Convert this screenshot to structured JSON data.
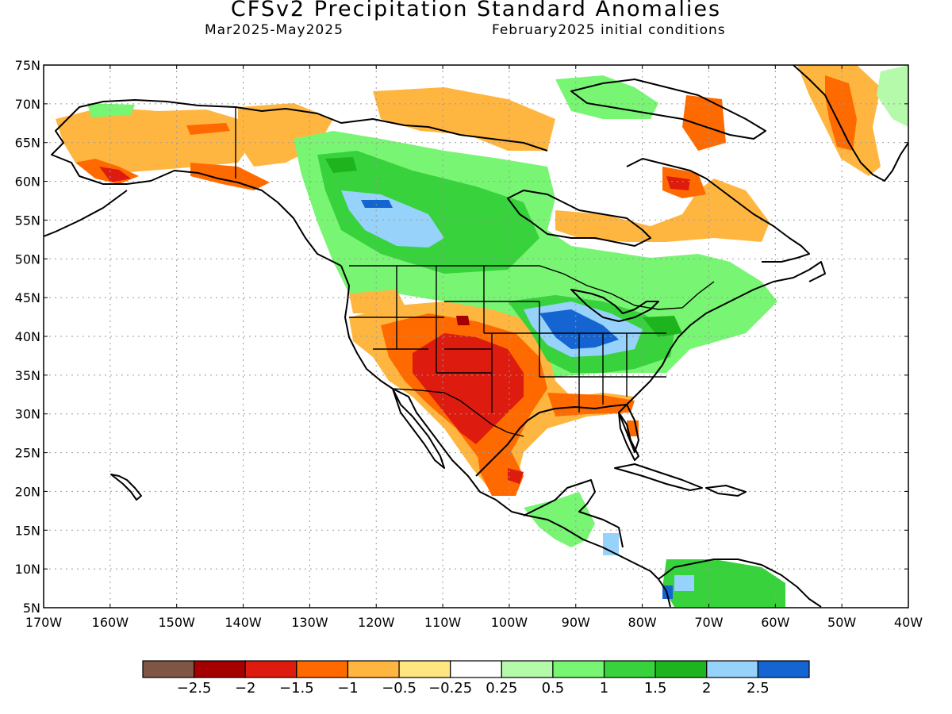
{
  "header": {
    "title": "CFSv2 Precipitation Standard Anomalies",
    "period": "Mar2025-May2025",
    "initial_conditions": "February2025 initial conditions"
  },
  "axes": {
    "lat_labels": [
      "75N",
      "70N",
      "65N",
      "60N",
      "55N",
      "50N",
      "45N",
      "40N",
      "35N",
      "30N",
      "25N",
      "20N",
      "15N",
      "10N",
      "5N"
    ],
    "lon_labels": [
      "170W",
      "160W",
      "150W",
      "140W",
      "130W",
      "120W",
      "110W",
      "100W",
      "90W",
      "80W",
      "70W",
      "60W",
      "50W",
      "40W"
    ]
  },
  "colorbar": {
    "colors": [
      "#7f5646",
      "#a50000",
      "#dd1c0f",
      "#ff6a00",
      "#ffb640",
      "#ffe680",
      "#ffffff",
      "#b4faaa",
      "#78f573",
      "#37d23c",
      "#1eb41e",
      "#96d2fa",
      "#1464d2"
    ],
    "labels": [
      "-2.5",
      "-2",
      "-1.5",
      "-1",
      "-0.5",
      "-0.25",
      "0.25",
      "0.5",
      "1",
      "1.5",
      "2",
      "2.5"
    ]
  },
  "colors": {
    "strong_dry": "#dd1c0f",
    "dry": "#ff6a00",
    "moderate_dry": "#ffb640",
    "slight_dry": "#ffe680",
    "slight_wet": "#b4faaa",
    "wet": "#78f573",
    "moderate_wet": "#37d23c",
    "strong_wet": "#1eb41e",
    "very_wet": "#96d2fa",
    "extreme_wet": "#1464d2"
  }
}
